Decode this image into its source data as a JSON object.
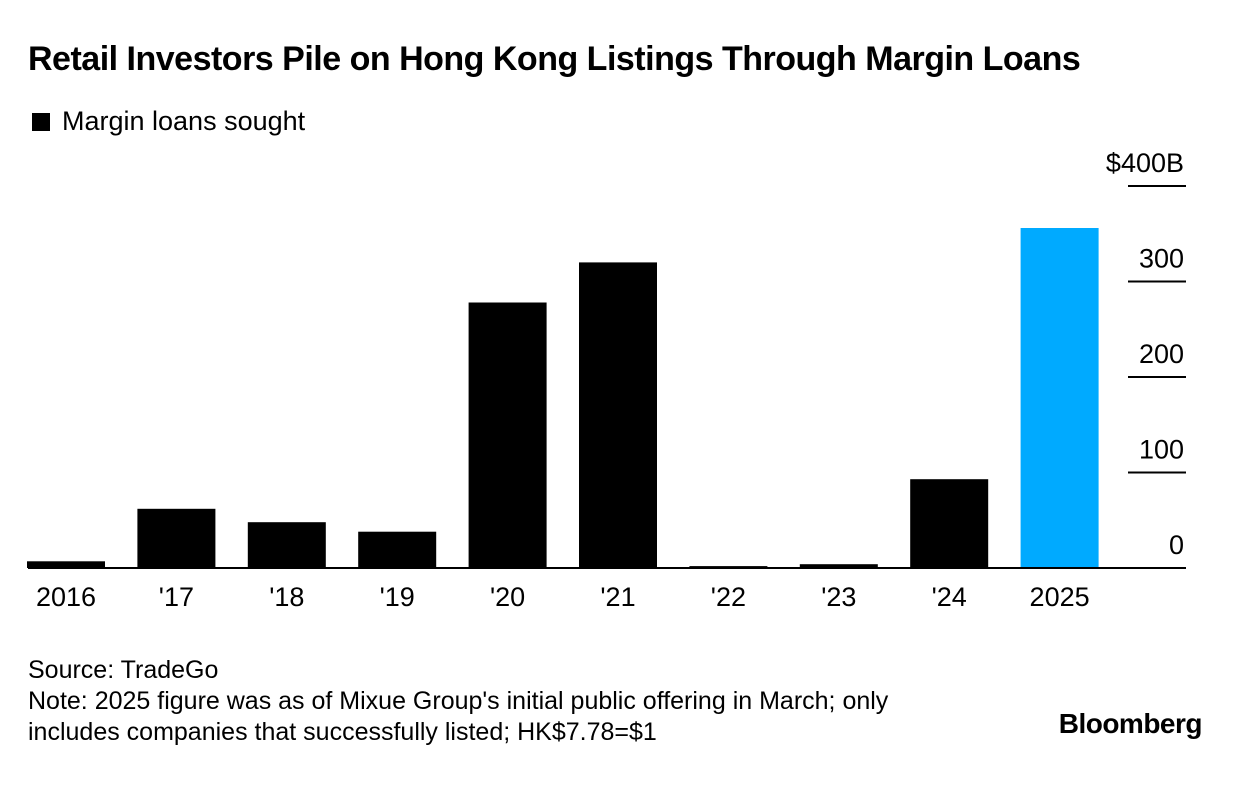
{
  "chart_data": {
    "type": "bar",
    "title": "Retail Investors Pile on Hong Kong Listings Through Margin Loans",
    "legend": [
      {
        "label": "Margin loans sought",
        "color": "#000000"
      }
    ],
    "categories": [
      "2016",
      "'17",
      "'18",
      "'19",
      "'20",
      "'21",
      "'22",
      "'23",
      "'24",
      "2025"
    ],
    "values": [
      7,
      62,
      48,
      38,
      278,
      320,
      2,
      4,
      93,
      356
    ],
    "highlight_index": 9,
    "colors": {
      "bar": "#000000",
      "highlight": "#00aaff",
      "axis": "#000000"
    },
    "y_ticks": [
      {
        "value": 0,
        "label": "0"
      },
      {
        "value": 100,
        "label": "100"
      },
      {
        "value": 200,
        "label": "200"
      },
      {
        "value": 300,
        "label": "300"
      },
      {
        "value": 400,
        "label": "$400B"
      }
    ],
    "ylim": [
      0,
      400
    ],
    "xlabel": "",
    "ylabel": "",
    "y_axis_side": "right"
  },
  "footer": {
    "source": "Source: TradeGo",
    "note_line1": "Note: 2025 figure was as of Mixue Group's initial public offering in March; only",
    "note_line2": "includes companies that successfully listed; HK$7.78=$1"
  },
  "brand": "Bloomberg"
}
